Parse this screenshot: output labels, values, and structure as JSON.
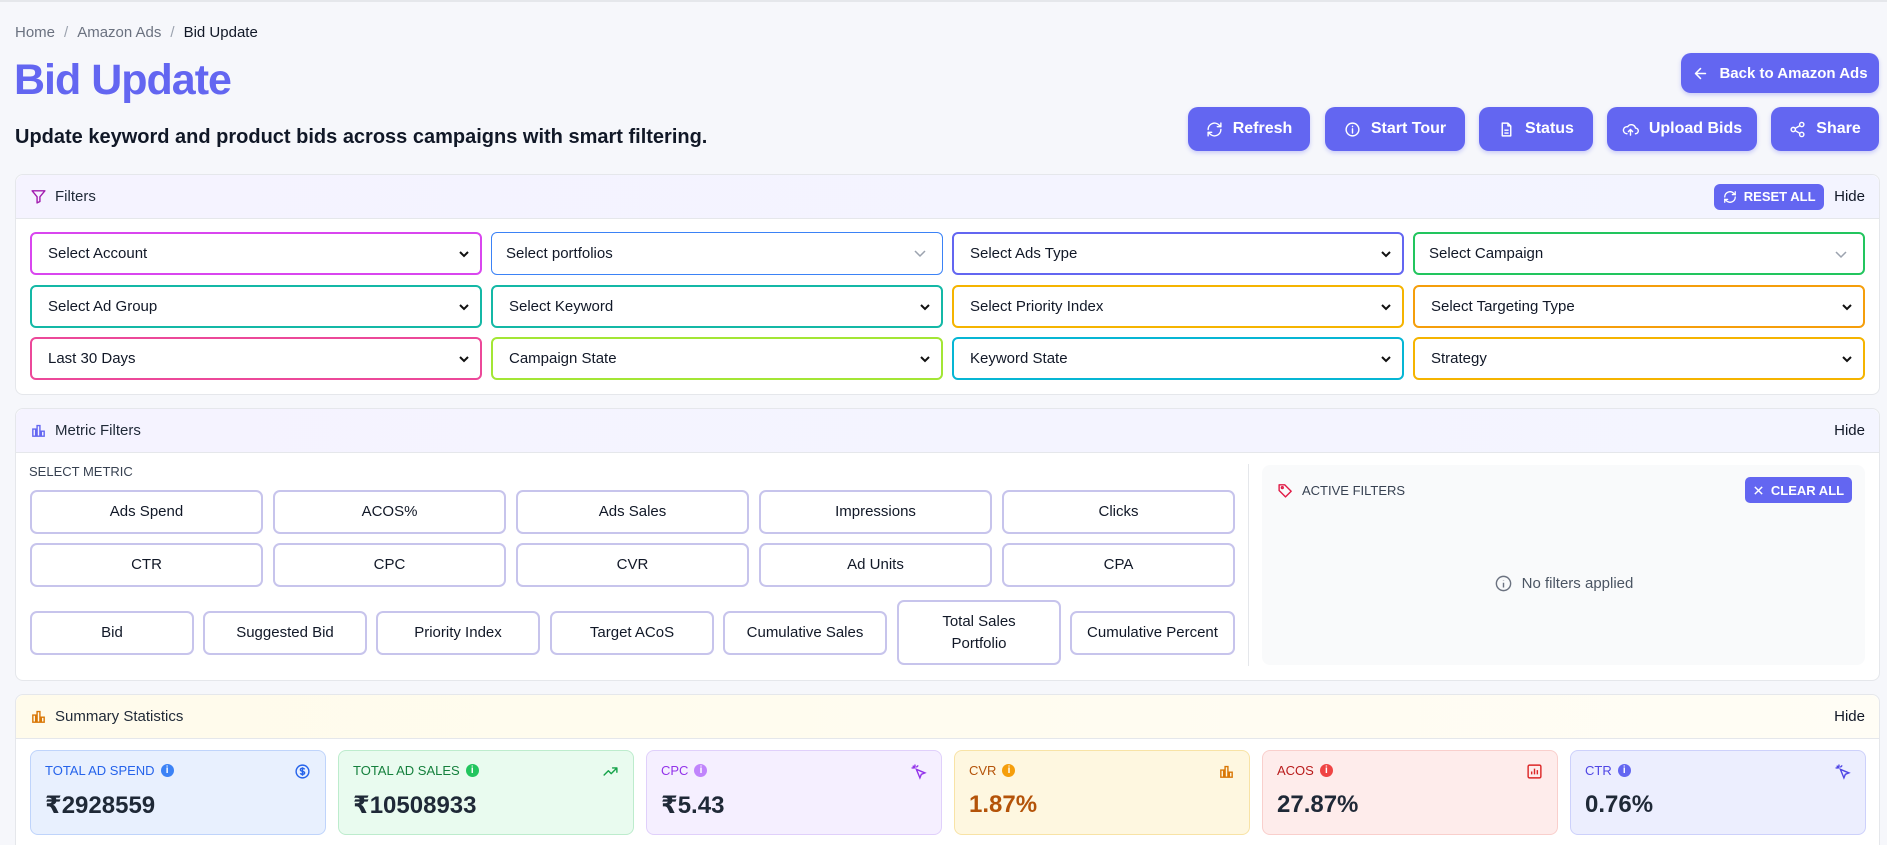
{
  "breadcrumb": {
    "home": "Home",
    "section": "Amazon Ads",
    "current": "Bid Update",
    "sep": "/"
  },
  "header": {
    "title": "Bid Update",
    "subtitle": "Update keyword and product bids across campaigns with smart filtering.",
    "back_label": "Back to Amazon Ads",
    "actions": {
      "refresh": "Refresh",
      "tour": "Start Tour",
      "status": "Status",
      "upload": "Upload Bids",
      "share": "Share"
    }
  },
  "filters": {
    "title": "Filters",
    "reset_label": "RESET ALL",
    "hide_label": "Hide",
    "selects": {
      "account": "Select Account",
      "portfolios": "Select portfolios",
      "ads_type": "Select Ads Type",
      "campaign": "Select Campaign",
      "ad_group": "Select Ad Group",
      "keyword": "Select Keyword",
      "priority_index": "Select Priority Index",
      "targeting_type": "Select Targeting Type",
      "date_range": "Last 30 Days",
      "campaign_state": "Campaign State",
      "keyword_state": "Keyword State",
      "strategy": "Strategy"
    }
  },
  "metric_filters": {
    "title": "Metric Filters",
    "hide_label": "Hide",
    "select_metric_label": "SELECT METRIC",
    "row1": [
      "Ads Spend",
      "ACOS%",
      "Ads Sales",
      "Impressions",
      "Clicks"
    ],
    "row2": [
      "CTR",
      "CPC",
      "CVR",
      "Ad Units",
      "CPA"
    ],
    "row3": [
      "Bid",
      "Suggested Bid",
      "Priority Index",
      "Target ACoS",
      "Cumulative Sales",
      "Total Sales Portfolio",
      "Cumulative Percent"
    ],
    "active": {
      "title": "ACTIVE FILTERS",
      "clear_label": "CLEAR ALL",
      "empty_text": "No filters applied"
    }
  },
  "summary": {
    "title": "Summary Statistics",
    "hide_label": "Hide",
    "stats": {
      "spend": {
        "label": "TOTAL AD SPEND",
        "value": "₹2928559"
      },
      "sales": {
        "label": "TOTAL AD SALES",
        "value": "₹10508933"
      },
      "cpc": {
        "label": "CPC",
        "value": "₹5.43"
      },
      "cvr": {
        "label": "CVR",
        "value": "1.87%"
      },
      "acos": {
        "label": "ACOS",
        "value": "27.87%"
      },
      "ctr": {
        "label": "CTR",
        "value": "0.76%"
      }
    }
  },
  "colors": {
    "accent": "#6366f1",
    "select_borders": [
      "#d946ef",
      "#3b82f6",
      "#6366f1",
      "#22c55e",
      "#14b8a6",
      "#14b8a6",
      "#f59e0b",
      "#f59e0b",
      "#ec4899",
      "#a3e635",
      "#06b6d4",
      "#f59e0b"
    ]
  }
}
